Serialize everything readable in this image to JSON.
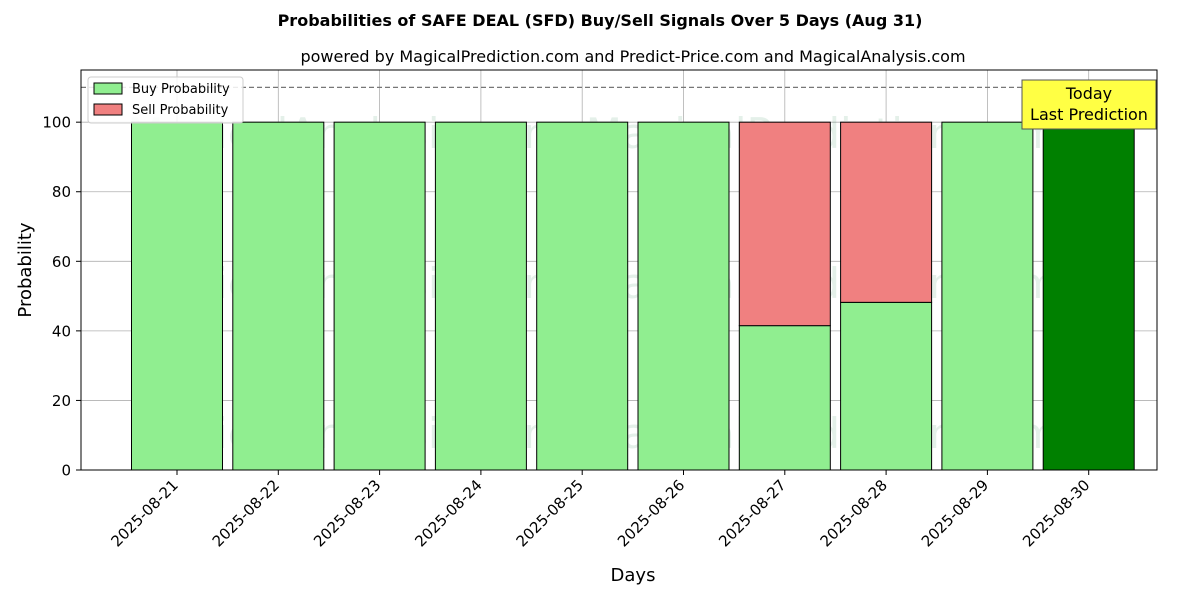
{
  "chart_data": {
    "type": "bar",
    "stacked": true,
    "title": "Probabilities of SAFE DEAL (SFD) Buy/Sell Signals Over 5 Days (Aug 31)",
    "subtitle": "powered by MagicalPrediction.com and Predict-Price.com and MagicalAnalysis.com",
    "xlabel": "Days",
    "ylabel": "Probability",
    "ylim": [
      0,
      115
    ],
    "yticks": [
      0,
      20,
      40,
      60,
      80,
      100
    ],
    "reference_line": 110,
    "grid": true,
    "legend_position": "top-left",
    "categories": [
      "2025-08-21",
      "2025-08-22",
      "2025-08-23",
      "2025-08-24",
      "2025-08-25",
      "2025-08-26",
      "2025-08-27",
      "2025-08-28",
      "2025-08-29",
      "2025-08-30"
    ],
    "series": [
      {
        "name": "Buy Probability",
        "color": "#90ee90",
        "values": [
          100,
          100,
          100,
          100,
          100,
          100,
          41.5,
          48.2,
          100,
          100
        ]
      },
      {
        "name": "Sell Probability",
        "color": "#f08080",
        "values": [
          0,
          0,
          0,
          0,
          0,
          0,
          58.5,
          51.8,
          0,
          0
        ]
      }
    ],
    "highlight": {
      "index": 9,
      "color": "#008000",
      "label_lines": [
        "Today",
        "Last Prediction"
      ],
      "box_color": "#ffff44"
    },
    "watermarks": [
      "MagicalAnalysis.com",
      "MagicalPrediction.com"
    ]
  }
}
